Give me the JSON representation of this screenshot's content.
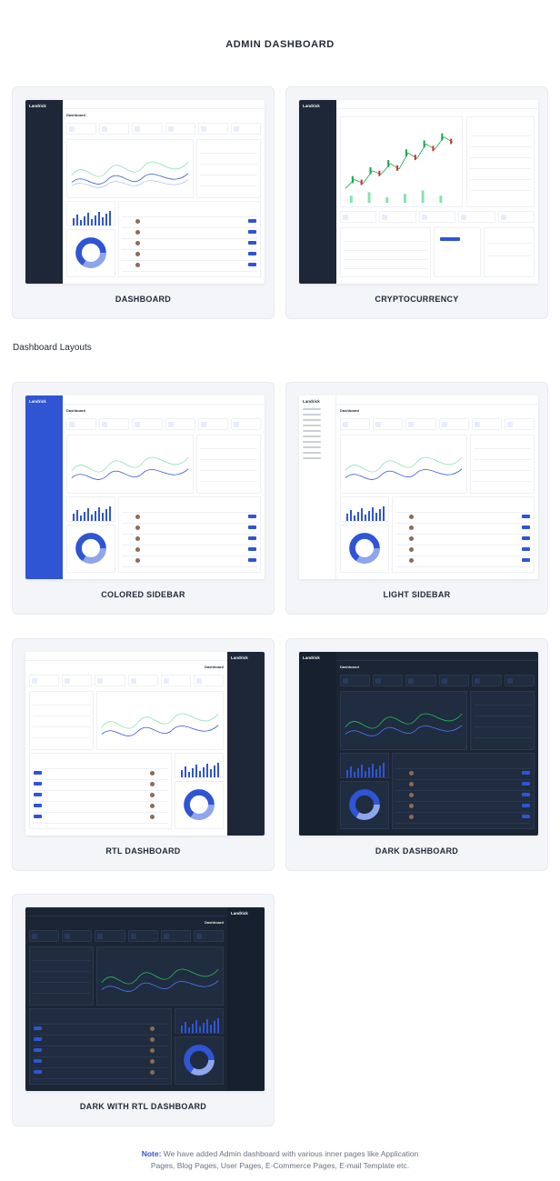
{
  "header": {
    "title": "ADMIN DASHBOARD"
  },
  "sections": {
    "layouts_title": "Dashboard Layouts"
  },
  "cards": [
    {
      "label": "DASHBOARD"
    },
    {
      "label": "CRYPTOCURRENCY"
    },
    {
      "label": "COLORED SIDEBAR"
    },
    {
      "label": "LIGHT SIDEBAR"
    },
    {
      "label": "RTL DASHBOARD"
    },
    {
      "label": "DARK DASHBOARD"
    },
    {
      "label": "DARK WITH RTL DASHBOARD"
    }
  ],
  "brand": {
    "logo_text": "Landrick"
  },
  "note": {
    "lead": "Note:",
    "line1": " We have added Admin dashboard with various inner pages like Application",
    "line2": "Pages, Blog Pages, User Pages, E-Commerce Pages, E-mail Template etc."
  },
  "colors": {
    "accent": "#2f55d4",
    "sidebar_dark": "#1d2738",
    "dark_bg": "#1b2534",
    "card_bg": "#f3f5f9"
  }
}
